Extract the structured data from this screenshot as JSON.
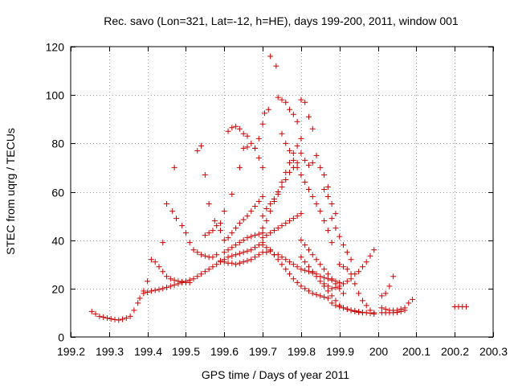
{
  "chart_data": {
    "type": "scatter",
    "title": "Rec. savo (Lon=321, Lat=-12, h=HE), days 199-200, 2011, window 001",
    "xlabel": "GPS time / Days of year 2011",
    "ylabel": "STEC from uqrg / TECUs",
    "xlim": [
      199.2,
      200.3
    ],
    "ylim": [
      0,
      120
    ],
    "xticks": [
      199.2,
      199.3,
      199.4,
      199.5,
      199.6,
      199.7,
      199.8,
      199.9,
      200,
      200.1,
      200.2,
      200.3
    ],
    "xtick_labels": [
      "199.2",
      "199.3",
      "199.4",
      "199.5",
      "199.6",
      "199.7",
      "199.8",
      "199.9",
      "200",
      "200.1",
      "200.2",
      "200.3"
    ],
    "yticks": [
      0,
      20,
      40,
      60,
      80,
      100,
      120
    ],
    "ytick_labels": [
      "0",
      "20",
      "40",
      "60",
      "80",
      "100",
      "120"
    ],
    "grid": true,
    "marker": "+",
    "marker_color": "#cc0000",
    "points": [
      [
        199.255,
        10.5
      ],
      [
        199.265,
        9.5
      ],
      [
        199.275,
        8.5
      ],
      [
        199.285,
        8.2
      ],
      [
        199.295,
        7.8
      ],
      [
        199.305,
        7.5
      ],
      [
        199.315,
        7.2
      ],
      [
        199.325,
        7.0
      ],
      [
        199.335,
        7.3
      ],
      [
        199.345,
        7.8
      ],
      [
        199.355,
        8.5
      ],
      [
        199.365,
        11
      ],
      [
        199.375,
        14
      ],
      [
        199.38,
        16
      ],
      [
        199.39,
        18
      ],
      [
        199.39,
        19
      ],
      [
        199.4,
        18.5
      ],
      [
        199.41,
        19
      ],
      [
        199.42,
        19.3
      ],
      [
        199.43,
        19.6
      ],
      [
        199.44,
        20
      ],
      [
        199.45,
        20.5
      ],
      [
        199.46,
        21
      ],
      [
        199.47,
        21.5
      ],
      [
        199.48,
        22
      ],
      [
        199.49,
        22.5
      ],
      [
        199.5,
        23
      ],
      [
        199.51,
        23.5
      ],
      [
        199.52,
        24
      ],
      [
        199.53,
        25
      ],
      [
        199.54,
        26
      ],
      [
        199.55,
        27
      ],
      [
        199.56,
        28
      ],
      [
        199.57,
        29
      ],
      [
        199.58,
        30
      ],
      [
        199.59,
        31
      ],
      [
        199.6,
        32
      ],
      [
        199.61,
        33
      ],
      [
        199.62,
        33.5
      ],
      [
        199.63,
        34
      ],
      [
        199.64,
        34.5
      ],
      [
        199.65,
        35
      ],
      [
        199.66,
        35.5
      ],
      [
        199.67,
        36
      ],
      [
        199.68,
        37
      ],
      [
        199.69,
        38
      ],
      [
        199.7,
        39
      ],
      [
        199.4,
        23
      ],
      [
        199.41,
        32
      ],
      [
        199.42,
        31
      ],
      [
        199.43,
        29
      ],
      [
        199.44,
        27
      ],
      [
        199.45,
        25
      ],
      [
        199.46,
        24
      ],
      [
        199.47,
        23.5
      ],
      [
        199.48,
        23
      ],
      [
        199.49,
        22.8
      ],
      [
        199.5,
        22.5
      ],
      [
        199.51,
        22.5
      ],
      [
        199.44,
        39
      ],
      [
        199.45,
        55
      ],
      [
        199.465,
        52
      ],
      [
        199.475,
        49
      ],
      [
        199.49,
        46
      ],
      [
        199.5,
        43
      ],
      [
        199.51,
        39
      ],
      [
        199.52,
        36
      ],
      [
        199.53,
        35
      ],
      [
        199.54,
        34
      ],
      [
        199.55,
        33.5
      ],
      [
        199.56,
        33
      ],
      [
        199.57,
        33
      ],
      [
        199.58,
        34
      ],
      [
        199.47,
        70
      ],
      [
        199.53,
        77
      ],
      [
        199.54,
        79
      ],
      [
        199.55,
        67
      ],
      [
        199.56,
        55
      ],
      [
        199.575,
        48
      ],
      [
        199.59,
        44
      ],
      [
        199.55,
        42
      ],
      [
        199.56,
        43
      ],
      [
        199.57,
        44
      ],
      [
        199.58,
        46
      ],
      [
        199.59,
        47
      ],
      [
        199.6,
        52
      ],
      [
        199.61,
        85
      ],
      [
        199.62,
        86.5
      ],
      [
        199.63,
        87
      ],
      [
        199.64,
        86
      ],
      [
        199.65,
        84
      ],
      [
        199.66,
        83
      ],
      [
        199.67,
        80
      ],
      [
        199.68,
        78
      ],
      [
        199.69,
        74
      ],
      [
        199.7,
        70
      ],
      [
        199.6,
        35
      ],
      [
        199.61,
        36
      ],
      [
        199.62,
        37
      ],
      [
        199.63,
        38
      ],
      [
        199.64,
        39
      ],
      [
        199.65,
        40
      ],
      [
        199.66,
        41
      ],
      [
        199.67,
        41.5
      ],
      [
        199.68,
        42
      ],
      [
        199.69,
        42.5
      ],
      [
        199.7,
        43
      ],
      [
        199.6,
        40
      ],
      [
        199.61,
        41
      ],
      [
        199.62,
        43
      ],
      [
        199.63,
        45
      ],
      [
        199.64,
        47
      ],
      [
        199.65,
        48.5
      ],
      [
        199.66,
        50
      ],
      [
        199.67,
        52
      ],
      [
        199.68,
        54
      ],
      [
        199.69,
        56
      ],
      [
        199.7,
        58
      ],
      [
        199.59,
        31.5
      ],
      [
        199.6,
        31
      ],
      [
        199.61,
        30.5
      ],
      [
        199.62,
        30.5
      ],
      [
        199.63,
        30
      ],
      [
        199.64,
        30.5
      ],
      [
        199.65,
        31
      ],
      [
        199.66,
        31.5
      ],
      [
        199.67,
        32
      ],
      [
        199.68,
        33
      ],
      [
        199.69,
        34
      ],
      [
        199.62,
        59
      ],
      [
        199.64,
        70
      ],
      [
        199.65,
        78
      ],
      [
        199.66,
        78.5
      ],
      [
        199.68,
        78
      ],
      [
        199.69,
        82
      ],
      [
        199.7,
        88
      ],
      [
        199.705,
        92.5
      ],
      [
        199.715,
        94
      ],
      [
        199.72,
        116
      ],
      [
        199.735,
        112
      ],
      [
        199.74,
        99
      ],
      [
        199.75,
        98
      ],
      [
        199.76,
        97
      ],
      [
        199.77,
        94
      ],
      [
        199.78,
        92
      ],
      [
        199.79,
        89
      ],
      [
        199.8,
        98
      ],
      [
        199.81,
        97
      ],
      [
        199.82,
        91
      ],
      [
        199.83,
        86
      ],
      [
        199.7,
        45
      ],
      [
        199.71,
        48
      ],
      [
        199.72,
        52
      ],
      [
        199.73,
        56
      ],
      [
        199.74,
        60
      ],
      [
        199.75,
        64
      ],
      [
        199.76,
        68
      ],
      [
        199.77,
        72
      ],
      [
        199.78,
        76
      ],
      [
        199.79,
        79
      ],
      [
        199.8,
        82
      ],
      [
        199.7,
        50
      ],
      [
        199.71,
        53
      ],
      [
        199.72,
        55
      ],
      [
        199.73,
        57
      ],
      [
        199.74,
        59
      ],
      [
        199.75,
        62
      ],
      [
        199.76,
        65
      ],
      [
        199.77,
        68
      ],
      [
        199.78,
        70
      ],
      [
        199.79,
        72
      ],
      [
        199.8,
        76
      ],
      [
        199.81,
        73
      ],
      [
        199.82,
        71
      ],
      [
        199.83,
        72
      ],
      [
        199.84,
        75
      ],
      [
        199.85,
        70
      ],
      [
        199.86,
        67
      ],
      [
        199.87,
        62
      ],
      [
        199.88,
        55
      ],
      [
        199.89,
        51
      ],
      [
        199.7,
        41
      ],
      [
        199.71,
        42
      ],
      [
        199.72,
        43
      ],
      [
        199.73,
        44
      ],
      [
        199.74,
        45
      ],
      [
        199.75,
        46
      ],
      [
        199.76,
        47
      ],
      [
        199.77,
        48
      ],
      [
        199.78,
        49
      ],
      [
        199.79,
        50
      ],
      [
        199.8,
        51
      ],
      [
        199.7,
        35
      ],
      [
        199.71,
        35
      ],
      [
        199.72,
        35.5
      ],
      [
        199.73,
        34
      ],
      [
        199.74,
        34
      ],
      [
        199.75,
        33
      ],
      [
        199.76,
        32
      ],
      [
        199.77,
        31
      ],
      [
        199.78,
        30
      ],
      [
        199.79,
        29
      ],
      [
        199.8,
        28
      ],
      [
        199.81,
        27.5
      ],
      [
        199.82,
        27
      ],
      [
        199.83,
        26.5
      ],
      [
        199.84,
        26
      ],
      [
        199.85,
        25
      ],
      [
        199.86,
        24.5
      ],
      [
        199.87,
        24
      ],
      [
        199.88,
        23.5
      ],
      [
        199.89,
        23
      ],
      [
        199.9,
        22.5
      ],
      [
        199.7,
        38
      ],
      [
        199.71,
        37
      ],
      [
        199.72,
        36
      ],
      [
        199.73,
        34
      ],
      [
        199.74,
        32
      ],
      [
        199.75,
        30
      ],
      [
        199.76,
        28
      ],
      [
        199.77,
        26
      ],
      [
        199.78,
        24
      ],
      [
        199.79,
        22.5
      ],
      [
        199.8,
        21
      ],
      [
        199.81,
        20
      ],
      [
        199.82,
        19
      ],
      [
        199.83,
        18
      ],
      [
        199.84,
        17.5
      ],
      [
        199.85,
        17
      ],
      [
        199.86,
        16.5
      ],
      [
        199.87,
        16
      ],
      [
        199.75,
        84
      ],
      [
        199.76,
        80
      ],
      [
        199.77,
        77
      ],
      [
        199.78,
        73
      ],
      [
        199.79,
        70
      ],
      [
        199.8,
        67
      ],
      [
        199.81,
        64
      ],
      [
        199.82,
        61
      ],
      [
        199.83,
        58
      ],
      [
        199.84,
        55
      ],
      [
        199.85,
        52
      ],
      [
        199.86,
        48
      ],
      [
        199.87,
        44
      ],
      [
        199.88,
        39
      ],
      [
        199.8,
        40
      ],
      [
        199.81,
        38
      ],
      [
        199.82,
        36
      ],
      [
        199.83,
        34
      ],
      [
        199.84,
        32
      ],
      [
        199.85,
        30
      ],
      [
        199.86,
        28
      ],
      [
        199.87,
        26
      ],
      [
        199.88,
        24
      ],
      [
        199.89,
        22
      ],
      [
        199.9,
        20
      ],
      [
        199.91,
        18
      ],
      [
        199.8,
        33
      ],
      [
        199.81,
        31
      ],
      [
        199.82,
        29
      ],
      [
        199.83,
        27
      ],
      [
        199.84,
        25
      ],
      [
        199.85,
        23
      ],
      [
        199.86,
        21
      ],
      [
        199.87,
        19
      ],
      [
        199.88,
        17
      ],
      [
        199.89,
        15
      ],
      [
        199.9,
        13
      ],
      [
        199.91,
        12
      ],
      [
        199.92,
        11.5
      ],
      [
        199.93,
        11
      ],
      [
        199.94,
        10.5
      ],
      [
        199.95,
        10.2
      ],
      [
        199.96,
        10
      ],
      [
        199.86,
        61
      ],
      [
        199.87,
        58
      ],
      [
        199.88,
        49
      ],
      [
        199.89,
        45
      ],
      [
        199.9,
        41.5
      ],
      [
        199.91,
        38
      ],
      [
        199.92,
        35
      ],
      [
        199.93,
        32
      ],
      [
        199.86,
        22
      ],
      [
        199.87,
        21
      ],
      [
        199.88,
        20
      ],
      [
        199.89,
        20.5
      ],
      [
        199.9,
        21
      ],
      [
        199.91,
        22
      ],
      [
        199.92,
        23
      ],
      [
        199.93,
        24
      ],
      [
        199.94,
        26
      ],
      [
        199.95,
        27
      ],
      [
        199.96,
        29
      ],
      [
        199.97,
        31
      ],
      [
        199.98,
        33.5
      ],
      [
        199.99,
        36
      ],
      [
        199.88,
        14
      ],
      [
        199.89,
        13
      ],
      [
        199.9,
        12.5
      ],
      [
        199.91,
        12
      ],
      [
        199.92,
        11.5
      ],
      [
        199.93,
        11
      ],
      [
        199.94,
        10.8
      ],
      [
        199.95,
        10.5
      ],
      [
        199.96,
        10.2
      ],
      [
        199.97,
        10
      ],
      [
        199.98,
        9.8
      ],
      [
        199.99,
        9.5
      ],
      [
        199.9,
        30
      ],
      [
        199.91,
        29
      ],
      [
        199.92,
        28
      ],
      [
        199.93,
        26
      ],
      [
        199.94,
        22
      ],
      [
        199.95,
        18
      ],
      [
        199.96,
        15
      ],
      [
        199.97,
        13
      ],
      [
        199.98,
        11
      ],
      [
        199.99,
        10
      ],
      [
        200.01,
        17
      ],
      [
        200.02,
        18
      ],
      [
        200.03,
        21
      ],
      [
        200.04,
        25
      ],
      [
        200.01,
        12
      ],
      [
        200.02,
        11.5
      ],
      [
        200.03,
        11
      ],
      [
        200.04,
        11
      ],
      [
        200.05,
        11
      ],
      [
        200.06,
        11.5
      ],
      [
        200.07,
        12
      ],
      [
        200.08,
        14
      ],
      [
        200.09,
        15.5
      ],
      [
        200.01,
        10
      ],
      [
        200.02,
        10
      ],
      [
        200.03,
        10
      ],
      [
        200.04,
        10
      ],
      [
        200.05,
        10.2
      ],
      [
        200.06,
        10.5
      ],
      [
        200.07,
        11
      ],
      [
        200.2,
        12.5
      ],
      [
        200.21,
        12.5
      ],
      [
        200.22,
        12.5
      ],
      [
        200.23,
        12.5
      ]
    ]
  }
}
